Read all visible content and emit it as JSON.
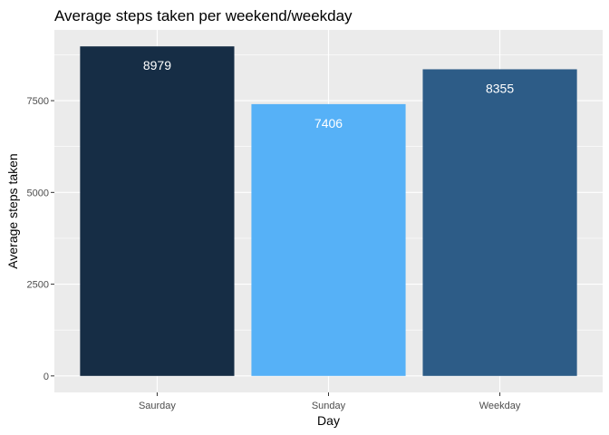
{
  "chart_data": {
    "type": "bar",
    "title": "Average steps taken per weekend/weekday",
    "xlabel": "Day",
    "ylabel": "Average steps taken",
    "categories": [
      "Saurday",
      "Sunday",
      "Weekday"
    ],
    "values": [
      8979,
      7406,
      8355
    ],
    "data_labels": [
      "8979",
      "7406",
      "8355"
    ],
    "colors": [
      "#162d45",
      "#56b1f7",
      "#2d5c87"
    ],
    "yticks": [
      0,
      2500,
      5000,
      7500
    ],
    "ytick_labels": [
      "0",
      "2500",
      "5000",
      "7500"
    ],
    "ylim": [
      -449,
      9428
    ],
    "grid": true,
    "panel_background": "#ebebeb",
    "legend": "none"
  }
}
